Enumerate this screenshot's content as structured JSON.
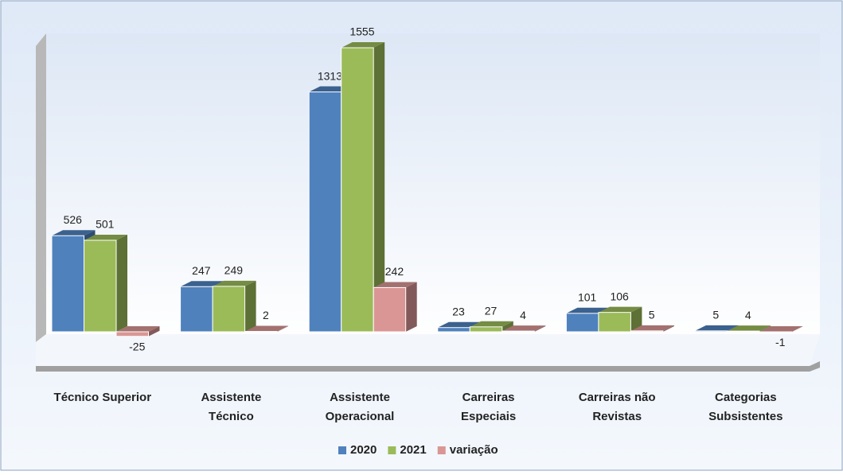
{
  "chart_data": {
    "type": "bar3d",
    "categories": [
      [
        "Técnico Superior"
      ],
      [
        "Assistente",
        "Técnico"
      ],
      [
        "Assistente",
        "Operacional"
      ],
      [
        "Carreiras",
        "Especiais"
      ],
      [
        "Carreiras não",
        "Revistas"
      ],
      [
        "Categorias",
        "Subsistentes"
      ]
    ],
    "series": [
      {
        "name": "2020",
        "color": "#4f81bd",
        "values": [
          526,
          247,
          1313,
          23,
          101,
          5
        ]
      },
      {
        "name": "2021",
        "color": "#9bbb59",
        "values": [
          501,
          249,
          1555,
          27,
          106,
          4
        ]
      },
      {
        "name": "variação",
        "color": "#d99694",
        "values": [
          -25,
          2,
          242,
          4,
          5,
          -1
        ]
      }
    ],
    "legend": "bottom"
  }
}
